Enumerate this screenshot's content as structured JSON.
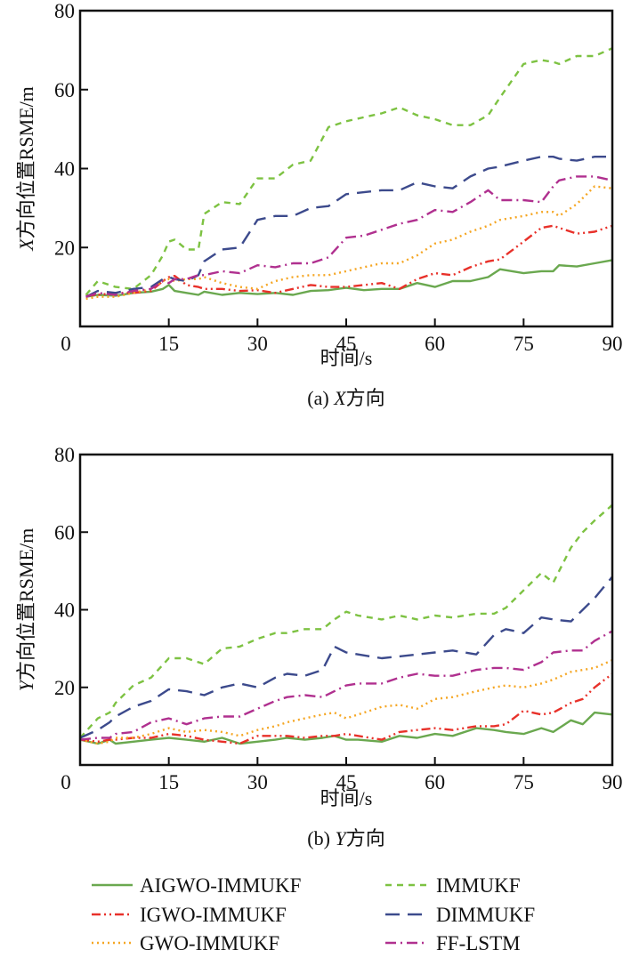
{
  "chart_data": [
    {
      "type": "line",
      "title": "",
      "caption": "(a) X方向",
      "caption_prefix": "(a) ",
      "caption_var": "X",
      "caption_suffix": "方向",
      "xlabel": "时间/s",
      "ylabel": "X方向位置RSME/m",
      "ylabel_var": "X",
      "ylabel_rest": "方向位置RSME/m",
      "xlim": [
        0,
        90
      ],
      "ylim": [
        0,
        80
      ],
      "xticks": [
        0,
        15,
        30,
        45,
        60,
        75,
        90
      ],
      "yticks": [
        0,
        20,
        40,
        60,
        80
      ],
      "grid": false,
      "x": [
        1,
        3,
        6,
        9,
        12,
        14,
        15,
        16,
        18,
        20,
        21,
        24,
        27,
        30,
        33,
        36,
        39,
        42,
        45,
        48,
        51,
        54,
        57,
        60,
        63,
        66,
        69,
        71,
        75,
        78,
        80,
        81,
        84,
        87,
        90
      ],
      "series": [
        {
          "name": "AIGWO-IMMUKF",
          "values": [
            7.5,
            8.0,
            7.8,
            8.5,
            8.8,
            9.5,
            10.5,
            9.0,
            8.5,
            8.0,
            8.8,
            8.0,
            8.5,
            8.2,
            8.5,
            8.0,
            9.0,
            9.2,
            9.8,
            9.2,
            9.5,
            9.5,
            11.0,
            10.0,
            11.5,
            11.5,
            12.5,
            14.5,
            13.5,
            14.0,
            14.0,
            15.5,
            15.2,
            16.0,
            16.8
          ]
        },
        {
          "name": "IGWO-IMMUKF",
          "values": [
            7.8,
            8.0,
            8.5,
            8.5,
            9.0,
            11.5,
            12.5,
            12.8,
            10.5,
            10.0,
            9.5,
            9.5,
            9.0,
            9.2,
            8.5,
            9.5,
            10.5,
            10.0,
            10.0,
            10.5,
            11.0,
            9.5,
            12.0,
            13.5,
            13.0,
            15.0,
            16.5,
            17.0,
            21.5,
            25.0,
            25.5,
            25.0,
            23.5,
            24.0,
            25.5
          ]
        },
        {
          "name": "GWO-IMMUKF",
          "values": [
            7.0,
            7.5,
            7.5,
            8.5,
            9.5,
            11.5,
            12.0,
            11.5,
            12.0,
            12.0,
            12.5,
            11.0,
            10.0,
            9.5,
            11.5,
            12.5,
            13.0,
            13.0,
            14.0,
            15.0,
            16.0,
            16.0,
            18.0,
            21.0,
            22.0,
            24.0,
            25.5,
            27.0,
            28.0,
            29.0,
            29.0,
            28.0,
            31.0,
            35.5,
            35.0
          ]
        },
        {
          "name": "IMMUKF",
          "values": [
            8.0,
            11.5,
            10.0,
            9.5,
            13.0,
            18.0,
            21.5,
            22.0,
            19.5,
            19.5,
            28.5,
            31.5,
            31.0,
            37.5,
            37.5,
            41.0,
            42.0,
            50.5,
            52.0,
            53.0,
            54.0,
            55.5,
            53.5,
            52.5,
            51.0,
            51.0,
            53.5,
            58.0,
            66.5,
            67.5,
            67.0,
            66.5,
            68.5,
            68.5,
            70.5
          ]
        },
        {
          "name": "DIMMUKF",
          "values": [
            7.5,
            9.0,
            8.5,
            9.5,
            10.0,
            12.0,
            12.5,
            12.0,
            11.5,
            13.0,
            16.5,
            19.5,
            20.0,
            27.0,
            28.0,
            28.0,
            30.0,
            30.5,
            33.5,
            34.0,
            34.5,
            34.5,
            36.5,
            35.5,
            35.0,
            38.0,
            40.0,
            40.5,
            42.0,
            43.0,
            43.0,
            42.5,
            42.0,
            43.0,
            43.0
          ]
        },
        {
          "name": "FF-LSTM",
          "values": [
            7.5,
            8.5,
            8.0,
            9.0,
            9.5,
            11.5,
            11.0,
            12.0,
            12.0,
            13.0,
            13.0,
            14.0,
            13.5,
            15.5,
            15.0,
            16.0,
            16.0,
            17.5,
            22.5,
            23.0,
            24.5,
            26.0,
            27.0,
            29.5,
            29.0,
            31.5,
            34.5,
            32.0,
            32.0,
            31.5,
            35.5,
            37.0,
            38.0,
            38.0,
            37.0
          ]
        }
      ]
    },
    {
      "type": "line",
      "title": "",
      "caption": "(b) Y方向",
      "caption_prefix": "(b) ",
      "caption_var": "Y",
      "caption_suffix": "方向",
      "xlabel": "时间/s",
      "ylabel": "Y方向位置RSME/m",
      "ylabel_var": "Y",
      "ylabel_rest": "方向位置RSME/m",
      "xlim": [
        0,
        90
      ],
      "ylim": [
        0,
        80
      ],
      "xticks": [
        0,
        15,
        30,
        45,
        60,
        75,
        90
      ],
      "yticks": [
        0,
        20,
        40,
        60,
        80
      ],
      "grid": false,
      "x": [
        0,
        3,
        5,
        6,
        9,
        12,
        15,
        18,
        21,
        24,
        27,
        30,
        33,
        35,
        38,
        41,
        43,
        45,
        47,
        51,
        54,
        57,
        60,
        63,
        67,
        70,
        72,
        75,
        78,
        80,
        83,
        85,
        87,
        90
      ],
      "series": [
        {
          "name": "AIGWO-IMMUKF",
          "values": [
            6.5,
            5.5,
            6.5,
            5.5,
            6.0,
            6.5,
            7.0,
            6.5,
            6.0,
            7.0,
            5.5,
            6.0,
            6.5,
            7.0,
            6.5,
            7.0,
            7.5,
            6.5,
            6.5,
            6.0,
            7.5,
            7.0,
            8.0,
            7.5,
            9.5,
            9.0,
            8.5,
            8.0,
            9.5,
            8.5,
            11.5,
            10.5,
            13.5,
            13.0
          ]
        },
        {
          "name": "IGWO-IMMUKF",
          "values": [
            6.5,
            6.0,
            6.5,
            6.5,
            7.0,
            7.0,
            8.0,
            7.5,
            6.5,
            6.0,
            5.5,
            7.5,
            7.5,
            7.5,
            7.0,
            7.5,
            7.5,
            8.0,
            7.5,
            6.5,
            8.5,
            9.0,
            9.5,
            9.0,
            10.0,
            10.0,
            10.5,
            14.0,
            13.0,
            13.5,
            16.0,
            17.0,
            20.0,
            23.5
          ]
        },
        {
          "name": "GWO-IMMUKF",
          "values": [
            6.5,
            5.5,
            6.0,
            7.0,
            7.0,
            8.0,
            9.5,
            8.5,
            9.0,
            8.5,
            7.5,
            9.0,
            10.0,
            11.0,
            12.0,
            13.0,
            13.5,
            12.0,
            13.0,
            15.0,
            15.5,
            14.5,
            17.0,
            17.5,
            19.0,
            20.0,
            20.5,
            20.0,
            21.0,
            22.0,
            24.0,
            24.5,
            25.0,
            27.0
          ]
        },
        {
          "name": "IMMUKF",
          "values": [
            7.0,
            12.0,
            13.5,
            16.0,
            20.5,
            22.5,
            27.5,
            27.5,
            26.0,
            30.0,
            30.5,
            32.5,
            34.0,
            34.0,
            35.0,
            35.0,
            37.5,
            39.5,
            38.5,
            37.5,
            38.5,
            37.5,
            38.5,
            38.0,
            39.0,
            39.0,
            40.5,
            45.0,
            49.5,
            47.0,
            56.0,
            60.0,
            63.0,
            67.0
          ]
        },
        {
          "name": "DIMMUKF",
          "values": [
            7.0,
            9.0,
            11.0,
            12.5,
            15.0,
            16.5,
            19.5,
            19.0,
            18.0,
            20.0,
            21.0,
            20.0,
            22.5,
            23.5,
            23.0,
            24.5,
            30.5,
            29.0,
            28.5,
            27.5,
            28.0,
            28.5,
            29.0,
            29.5,
            28.5,
            33.5,
            35.0,
            34.0,
            38.0,
            37.5,
            37.0,
            40.0,
            43.0,
            48.5
          ]
        },
        {
          "name": "FF-LSTM",
          "values": [
            6.5,
            7.0,
            7.0,
            8.0,
            8.5,
            11.0,
            12.0,
            10.5,
            12.0,
            12.5,
            12.5,
            14.5,
            16.5,
            17.5,
            18.0,
            17.5,
            19.0,
            20.5,
            21.0,
            21.0,
            22.5,
            23.5,
            23.0,
            23.0,
            24.5,
            25.0,
            25.0,
            24.5,
            26.5,
            29.0,
            29.5,
            29.5,
            32.0,
            34.5
          ]
        }
      ]
    }
  ],
  "legend": {
    "placement": "bottom",
    "items": [
      {
        "name": "AIGWO-IMMUKF",
        "color": "#6aa84f",
        "style": "solid"
      },
      {
        "name": "IMMUKF",
        "color": "#7dc242",
        "style": "dashed"
      },
      {
        "name": "IGWO-IMMUKF",
        "color": "#e8312a",
        "style": "dash-dot-dot"
      },
      {
        "name": "DIMMUKF",
        "color": "#3c4a8c",
        "style": "long-dash"
      },
      {
        "name": "GWO-IMMUKF",
        "color": "#f5a623",
        "style": "dotted"
      },
      {
        "name": "FF-LSTM",
        "color": "#b0308f",
        "style": "dash-dot"
      }
    ]
  },
  "series_styles": {
    "AIGWO-IMMUKF": {
      "color": "#6aa84f",
      "style": "solid"
    },
    "IGWO-IMMUKF": {
      "color": "#e8312a",
      "style": "dash-dot-dot"
    },
    "GWO-IMMUKF": {
      "color": "#f5a623",
      "style": "dotted"
    },
    "IMMUKF": {
      "color": "#7dc242",
      "style": "dashed"
    },
    "DIMMUKF": {
      "color": "#3c4a8c",
      "style": "long-dash"
    },
    "FF-LSTM": {
      "color": "#b0308f",
      "style": "dash-dot"
    }
  }
}
